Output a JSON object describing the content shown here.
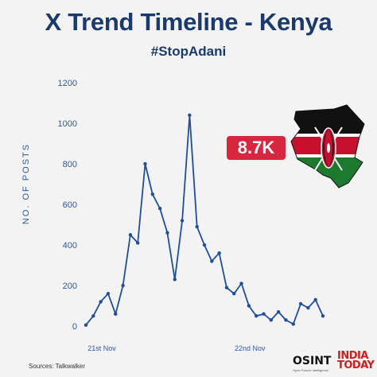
{
  "header": {
    "title": "X Trend Timeline - Kenya",
    "hashtag": "#StopAdani"
  },
  "badge": {
    "value": "8.7K",
    "color": "#d7263d"
  },
  "footer": {
    "source": "Sources: Talkwalker",
    "logo_osint": "OSINT",
    "logo_osint_tagline": "Open Source Intelligence",
    "logo_india_today": "INDIA TODAY"
  },
  "colors": {
    "line": "#1f4e9c",
    "title": "#1a3a6e",
    "axis": "#2b5aa8"
  },
  "chart_data": {
    "type": "line",
    "title": "X Trend Timeline - Kenya",
    "subtitle": "#StopAdani",
    "xlabel": "",
    "ylabel": "NO. OF POSTS",
    "ylim": [
      0,
      1200
    ],
    "yticks": [
      0,
      200,
      400,
      600,
      800,
      1000,
      1200
    ],
    "grid": false,
    "xtick_labels": [
      {
        "index": 0,
        "label": "21st Nov"
      },
      {
        "index": 20,
        "label": "22nd Nov"
      }
    ],
    "series": [
      {
        "values": [
          5,
          50,
          120,
          160,
          60,
          200,
          450,
          410,
          800,
          650,
          580,
          460,
          230,
          520,
          1040,
          490,
          400,
          320,
          360,
          190,
          160,
          210,
          100,
          50,
          60,
          30,
          70,
          30,
          10,
          110,
          90,
          130,
          50
        ]
      }
    ]
  }
}
